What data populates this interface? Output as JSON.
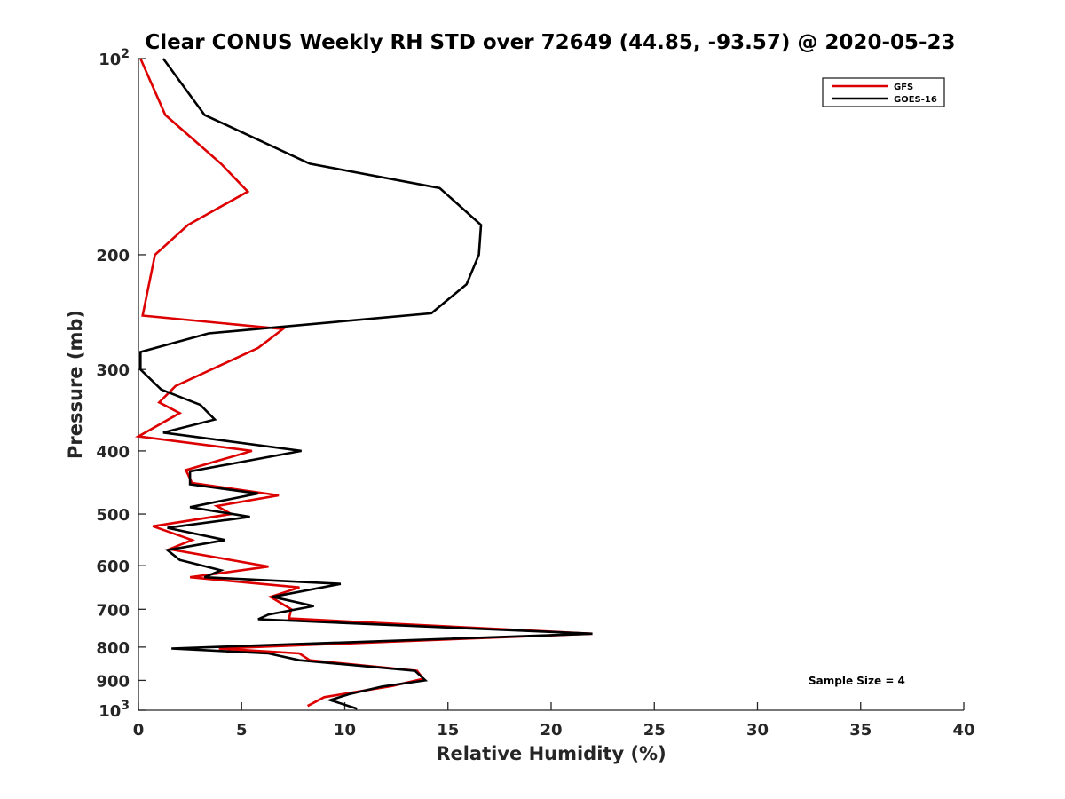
{
  "chart_data": {
    "type": "line",
    "title": "Clear CONUS Weekly RH STD over 72649 (44.85, -93.57) @ 2020-05-23",
    "xlabel": "Relative Humidity (%)",
    "ylabel": "Pressure (mb)",
    "xlim": [
      0,
      40
    ],
    "ylim": [
      100,
      1000
    ],
    "y_scale": "log",
    "y_reversed": true,
    "grid": false,
    "legend": "top-right",
    "x_ticks": [
      "0",
      "5",
      "10",
      "15",
      "20",
      "25",
      "30",
      "35",
      "40"
    ],
    "y_ticks": [
      {
        "value": 100,
        "base": "10",
        "exp": "2"
      },
      {
        "value": 200,
        "label": "200"
      },
      {
        "value": 300,
        "label": "300"
      },
      {
        "value": 400,
        "label": "400"
      },
      {
        "value": 500,
        "label": "500"
      },
      {
        "value": 600,
        "label": "600"
      },
      {
        "value": 700,
        "label": "700"
      },
      {
        "value": 800,
        "label": "800"
      },
      {
        "value": 900,
        "label": "900"
      },
      {
        "value": 1000,
        "base": "10",
        "exp": "3"
      }
    ],
    "annotations": [
      "Sample Size = 4"
    ],
    "series": [
      {
        "name": "GFS",
        "color": "#dd0000",
        "points": [
          [
            0.1,
            100
          ],
          [
            1.3,
            122
          ],
          [
            4.0,
            145
          ],
          [
            5.3,
            160
          ],
          [
            2.4,
            180
          ],
          [
            0.8,
            200
          ],
          [
            0.2,
            248
          ],
          [
            7.0,
            260
          ],
          [
            5.8,
            278
          ],
          [
            1.8,
            318
          ],
          [
            1.0,
            337
          ],
          [
            2.0,
            350
          ],
          [
            0.0,
            380
          ],
          [
            5.5,
            400
          ],
          [
            2.3,
            428
          ],
          [
            2.6,
            448
          ],
          [
            6.8,
            468
          ],
          [
            3.8,
            486
          ],
          [
            4.5,
            500
          ],
          [
            0.7,
            522
          ],
          [
            2.6,
            548
          ],
          [
            1.5,
            566
          ],
          [
            6.3,
            602
          ],
          [
            2.5,
            625
          ],
          [
            7.8,
            648
          ],
          [
            6.4,
            670
          ],
          [
            7.4,
            700
          ],
          [
            7.3,
            723
          ],
          [
            22.0,
            763
          ],
          [
            3.9,
            804
          ],
          [
            7.8,
            818
          ],
          [
            8.3,
            838
          ],
          [
            13.5,
            870
          ],
          [
            13.8,
            895
          ],
          [
            12.3,
            918
          ],
          [
            9.0,
            955
          ],
          [
            8.2,
            985
          ]
        ]
      },
      {
        "name": "GOES-16",
        "color": "#000000",
        "points": [
          [
            1.2,
            100
          ],
          [
            3.2,
            122
          ],
          [
            8.3,
            145
          ],
          [
            14.6,
            158
          ],
          [
            16.6,
            180
          ],
          [
            16.5,
            200
          ],
          [
            15.9,
            222
          ],
          [
            14.2,
            246
          ],
          [
            3.4,
            264
          ],
          [
            0.1,
            282
          ],
          [
            0.1,
            300
          ],
          [
            1.1,
            322
          ],
          [
            3.0,
            340
          ],
          [
            3.7,
            358
          ],
          [
            1.2,
            375
          ],
          [
            7.9,
            400
          ],
          [
            2.5,
            430
          ],
          [
            2.5,
            450
          ],
          [
            5.8,
            465
          ],
          [
            2.5,
            488
          ],
          [
            5.4,
            505
          ],
          [
            1.4,
            525
          ],
          [
            4.2,
            548
          ],
          [
            1.4,
            568
          ],
          [
            2.0,
            588
          ],
          [
            4.0,
            610
          ],
          [
            3.2,
            625
          ],
          [
            9.8,
            640
          ],
          [
            6.5,
            670
          ],
          [
            8.5,
            692
          ],
          [
            6.3,
            713
          ],
          [
            5.8,
            725
          ],
          [
            22.0,
            763
          ],
          [
            1.6,
            804
          ],
          [
            6.3,
            818
          ],
          [
            7.8,
            838
          ],
          [
            13.4,
            870
          ],
          [
            13.9,
            900
          ],
          [
            11.8,
            920
          ],
          [
            10.2,
            945
          ],
          [
            9.3,
            965
          ],
          [
            10.6,
            995
          ]
        ]
      }
    ]
  }
}
